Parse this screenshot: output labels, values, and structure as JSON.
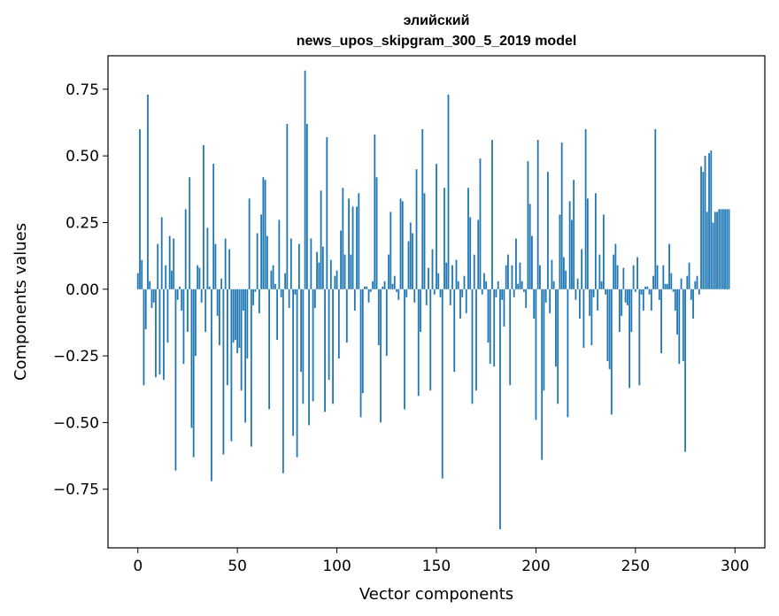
{
  "chart_data": {
    "type": "bar",
    "title": "элийский",
    "subtitle": "news_upos_skipgram_300_5_2019 model",
    "xlabel": "Vector components",
    "ylabel": "Components values",
    "xlim": [
      -15,
      315
    ],
    "ylim": [
      -0.9699,
      0.8755
    ],
    "xticks": [
      0,
      50,
      100,
      150,
      200,
      250,
      300
    ],
    "yticks": [
      -0.75,
      -0.5,
      -0.25,
      0.0,
      0.25,
      0.5,
      0.75
    ],
    "xtick_labels": [
      "0",
      "50",
      "100",
      "150",
      "200",
      "250",
      "300"
    ],
    "ytick_labels": [
      "−0.75",
      "−0.50",
      "−0.25",
      "0.00",
      "0.25",
      "0.50",
      "0.75"
    ],
    "grid": false,
    "bar_color": "#1f77b4",
    "values": [
      0.06,
      0.6,
      0.11,
      -0.36,
      -0.15,
      0.73,
      0.03,
      -0.07,
      -0.05,
      -0.33,
      0.17,
      -0.32,
      0.27,
      -0.34,
      0.09,
      -0.2,
      0.2,
      0.07,
      0.19,
      -0.68,
      -0.04,
      0.01,
      -0.08,
      -0.28,
      0.3,
      -0.16,
      0.42,
      -0.52,
      -0.63,
      -0.25,
      0.09,
      0.08,
      -0.05,
      0.54,
      -0.16,
      0.23,
      0.01,
      -0.72,
      0.47,
      0.17,
      -0.1,
      -0.21,
      0.04,
      -0.62,
      0.19,
      -0.36,
      0.15,
      -0.57,
      -0.2,
      -0.19,
      -0.24,
      -0.22,
      -0.38,
      -0.08,
      -0.5,
      -0.26,
      0.34,
      -0.59,
      -0.06,
      -0.01,
      0.21,
      -0.09,
      0.28,
      0.42,
      0.41,
      0.2,
      -0.45,
      0.07,
      0.09,
      0.02,
      -0.19,
      0.26,
      -0.03,
      -0.69,
      0.06,
      0.62,
      -0.07,
      0.19,
      -0.55,
      -0.02,
      -0.63,
      0.17,
      -0.31,
      -0.43,
      0.82,
      0.62,
      -0.51,
      0.19,
      -0.42,
      -0.07,
      0.14,
      0.1,
      0.37,
      0.16,
      -0.46,
      0.57,
      -0.34,
      0.11,
      -0.43,
      0.05,
      0.07,
      -0.26,
      0.22,
      0.38,
      0.13,
      -0.2,
      0.34,
      0.13,
      0.31,
      -0.08,
      0.31,
      0.36,
      -0.48,
      -0.39,
      0.01,
      0.01,
      -0.05,
      -0.01,
      0.03,
      0.58,
      0.42,
      -0.21,
      -0.5,
      0.01,
      0.03,
      -0.25,
      0.13,
      0.29,
      0.02,
      0.05,
      -0.01,
      -0.04,
      0.34,
      0.33,
      -0.45,
      -0.03,
      0.18,
      0.25,
      0.21,
      -0.05,
      0.45,
      -0.4,
      -0.16,
      0.6,
      0.36,
      -0.06,
      0.08,
      -0.38,
      0.15,
      -0.02,
      0.47,
      0.06,
      -0.03,
      -0.71,
      0.38,
      0.1,
      0.73,
      -0.06,
      0.09,
      -0.31,
      0.11,
      0.03,
      -0.11,
      -0.03,
      0.05,
      -0.09,
      0.38,
      0.27,
      -0.43,
      0.13,
      -0.38,
      0.26,
      0.49,
      -0.02,
      0.06,
      0.03,
      -0.2,
      -0.28,
      0.56,
      -0.29,
      -0.03,
      0.03,
      -0.9,
      -0.04,
      -0.14,
      0.09,
      0.13,
      -0.36,
      0.09,
      -0.03,
      0.19,
      0.02,
      0.1,
      0.03,
      -0.01,
      -0.07,
      0.48,
      0.32,
      0.2,
      -0.11,
      -0.49,
      0.56,
      0.09,
      -0.64,
      -0.38,
      -0.05,
      0.44,
      -0.09,
      0.11,
      0.03,
      -0.29,
      -0.43,
      0.28,
      0.55,
      0.12,
      0.07,
      -0.48,
      0.33,
      0.26,
      0.41,
      -0.04,
      0.04,
      -0.11,
      0.15,
      -0.22,
      0.6,
      0.34,
      -0.1,
      -0.21,
      -0.03,
      0.36,
      -0.08,
      0.13,
      0.03,
      0.28,
      -0.02,
      -0.27,
      -0.3,
      -0.47,
      0.13,
      0.17,
      0.09,
      -0.16,
      -0.1,
      0.08,
      -0.05,
      -0.06,
      -0.37,
      -0.16,
      0.09,
      -0.01,
      0.12,
      -0.36,
      -0.02,
      -0.08,
      0.01,
      0.01,
      -0.02,
      -0.08,
      0.05,
      0.6,
      0.09,
      -0.04,
      -0.24,
      0.09,
      0.02,
      0.02,
      0.17,
      0.06,
      -0.01,
      -0.08,
      -0.17,
      -0.28,
      0.04,
      -0.27,
      -0.61,
      0.05,
      0.1,
      -0.04,
      -0.11,
      0.03,
      0.05,
      -0.02,
      0.46,
      0.44,
      0.5,
      0.29,
      0.51,
      0.52,
      0.25,
      0.29,
      0.29,
      0.3,
      0.3,
      0.3,
      0.3,
      0.3,
      0.3
    ]
  }
}
